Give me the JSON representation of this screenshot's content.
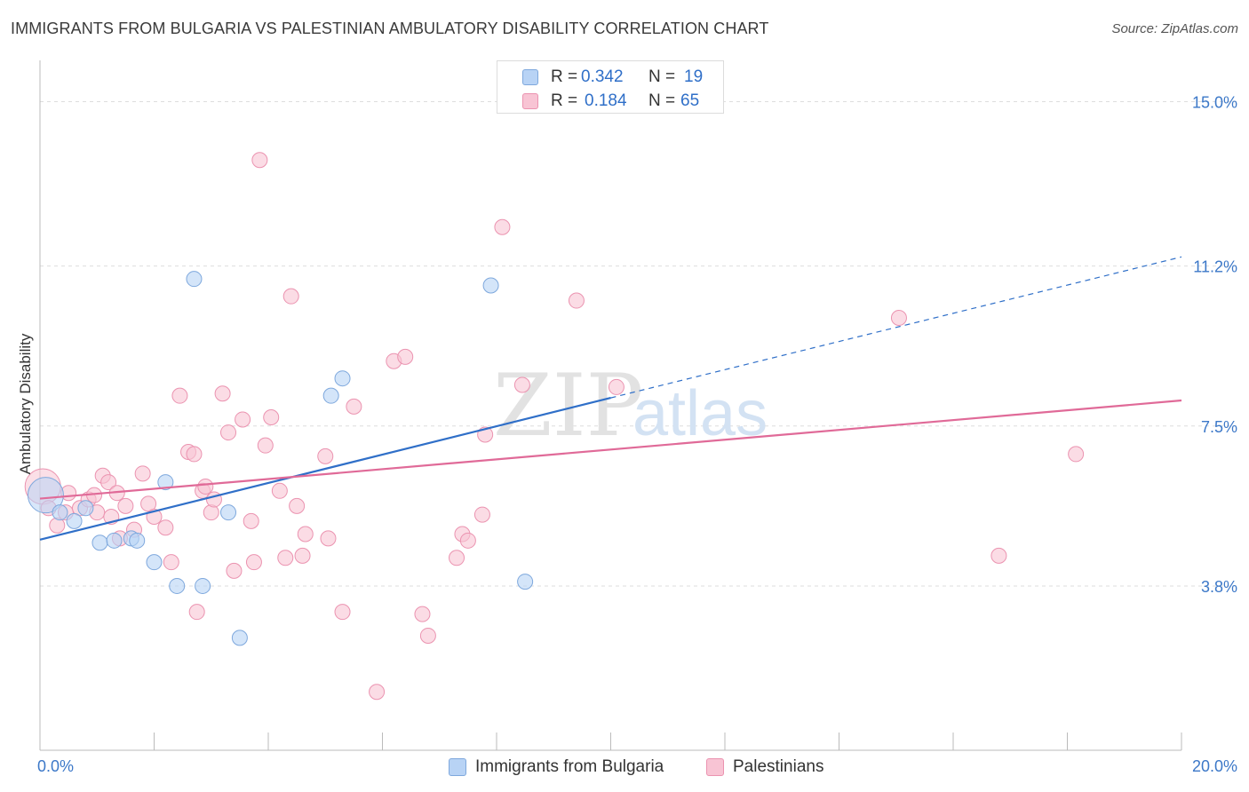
{
  "header": {
    "title": "IMMIGRANTS FROM BULGARIA VS PALESTINIAN AMBULATORY DISABILITY CORRELATION CHART",
    "source": "Source: ZipAtlas.com"
  },
  "legend": {
    "series1": {
      "r_label": "R =",
      "r_value": "0.342",
      "n_label": "N =",
      "n_value": "19"
    },
    "series2": {
      "r_label": "R =",
      "r_value": "0.184",
      "n_label": "N =",
      "n_value": "65"
    }
  },
  "bottom_legend": {
    "series1_label": "Immigrants from Bulgaria",
    "series2_label": "Palestinians"
  },
  "watermark": {
    "zip": "ZIP",
    "atlas": "atlas"
  },
  "colors": {
    "blue_fill": "#b8d3f5",
    "blue_stroke": "#7ea8dd",
    "blue_line": "#2f6fc8",
    "pink_fill": "#f8c4d4",
    "pink_stroke": "#eb93b0",
    "pink_line": "#e06a98",
    "tick_text": "#3c78c8",
    "grid": "#dddddd"
  },
  "chart_data": {
    "type": "scatter",
    "title": "IMMIGRANTS FROM BULGARIA VS PALESTINIAN AMBULATORY DISABILITY CORRELATION CHART",
    "xlabel": "",
    "ylabel": "Ambulatory Disability",
    "xlim": [
      0,
      20
    ],
    "ylim": [
      0,
      15.75
    ],
    "x_tick_labels": [
      "0.0%",
      "20.0%"
    ],
    "y_ticks": [
      3.8,
      7.5,
      11.2,
      15.0
    ],
    "y_tick_labels": [
      "3.8%",
      "7.5%",
      "11.2%",
      "15.0%"
    ],
    "series": [
      {
        "name": "Immigrants from Bulgaria",
        "r": 0.342,
        "n": 19,
        "points": [
          [
            0.1,
            5.9
          ],
          [
            0.35,
            5.5
          ],
          [
            0.6,
            5.3
          ],
          [
            0.8,
            5.6
          ],
          [
            1.05,
            4.8
          ],
          [
            1.3,
            4.85
          ],
          [
            1.6,
            4.9
          ],
          [
            1.7,
            4.85
          ],
          [
            2.0,
            4.35
          ],
          [
            2.2,
            6.2
          ],
          [
            2.4,
            3.8
          ],
          [
            2.7,
            10.9
          ],
          [
            2.85,
            3.8
          ],
          [
            3.3,
            5.5
          ],
          [
            3.5,
            2.6
          ],
          [
            5.1,
            8.2
          ],
          [
            5.3,
            8.6
          ],
          [
            7.9,
            10.75
          ],
          [
            8.5,
            3.9
          ]
        ],
        "trend": {
          "x0": 0,
          "y0": 4.87,
          "x1": 10,
          "y1": 8.15,
          "dashed_to_x": 20,
          "dashed_to_y": 11.41
        }
      },
      {
        "name": "Palestinians",
        "r": 0.184,
        "n": 65,
        "points": [
          [
            0.05,
            6.1
          ],
          [
            0.15,
            5.6
          ],
          [
            0.3,
            5.2
          ],
          [
            0.45,
            5.5
          ],
          [
            0.5,
            5.95
          ],
          [
            0.7,
            5.6
          ],
          [
            0.85,
            5.8
          ],
          [
            0.95,
            5.9
          ],
          [
            1.0,
            5.5
          ],
          [
            1.1,
            6.35
          ],
          [
            1.2,
            6.2
          ],
          [
            1.25,
            5.4
          ],
          [
            1.35,
            5.95
          ],
          [
            1.4,
            4.9
          ],
          [
            1.5,
            5.65
          ],
          [
            1.65,
            5.1
          ],
          [
            1.8,
            6.4
          ],
          [
            1.9,
            5.7
          ],
          [
            2.0,
            5.4
          ],
          [
            2.2,
            5.15
          ],
          [
            2.3,
            4.35
          ],
          [
            2.45,
            8.2
          ],
          [
            2.6,
            6.9
          ],
          [
            2.7,
            6.85
          ],
          [
            2.75,
            3.2
          ],
          [
            2.85,
            6.0
          ],
          [
            2.9,
            6.1
          ],
          [
            3.0,
            5.5
          ],
          [
            3.05,
            5.8
          ],
          [
            3.2,
            8.25
          ],
          [
            3.3,
            7.35
          ],
          [
            3.4,
            4.15
          ],
          [
            3.55,
            7.65
          ],
          [
            3.7,
            5.3
          ],
          [
            3.75,
            4.35
          ],
          [
            3.85,
            13.65
          ],
          [
            3.95,
            7.05
          ],
          [
            4.05,
            7.7
          ],
          [
            4.2,
            6.0
          ],
          [
            4.3,
            4.45
          ],
          [
            4.4,
            10.5
          ],
          [
            4.5,
            5.65
          ],
          [
            4.6,
            4.5
          ],
          [
            4.65,
            5.0
          ],
          [
            5.0,
            6.8
          ],
          [
            5.05,
            4.9
          ],
          [
            5.3,
            3.2
          ],
          [
            5.5,
            7.95
          ],
          [
            5.9,
            1.35
          ],
          [
            6.2,
            9.0
          ],
          [
            6.4,
            9.1
          ],
          [
            6.7,
            3.15
          ],
          [
            6.8,
            2.65
          ],
          [
            7.3,
            4.45
          ],
          [
            7.4,
            5.0
          ],
          [
            7.5,
            4.85
          ],
          [
            7.75,
            5.45
          ],
          [
            7.8,
            7.3
          ],
          [
            8.1,
            12.1
          ],
          [
            8.45,
            8.45
          ],
          [
            9.4,
            10.4
          ],
          [
            10.1,
            8.4
          ],
          [
            15.05,
            10.0
          ],
          [
            16.8,
            4.5
          ],
          [
            18.15,
            6.85
          ]
        ],
        "trend": {
          "x0": 0,
          "y0": 5.82,
          "x1": 20,
          "y1": 8.09
        }
      }
    ]
  }
}
